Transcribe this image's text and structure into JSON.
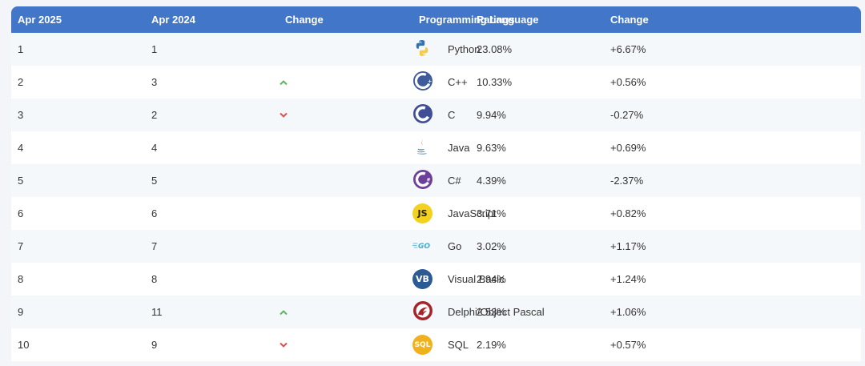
{
  "headers": [
    "Apr 2025",
    "Apr 2024",
    "Change",
    "Programming Language",
    "Ratings",
    "Change"
  ],
  "colors": {
    "header_bg": "#4176c8",
    "up": "#5cb85c",
    "down": "#d9534f"
  },
  "rows": [
    {
      "now": "1",
      "prev": "1",
      "trend": "none",
      "icon": "python-icon",
      "lang": "Python",
      "rating": "23.08%",
      "delta": "+6.67%"
    },
    {
      "now": "2",
      "prev": "3",
      "trend": "up",
      "icon": "cpp-icon",
      "lang": "C++",
      "rating": "10.33%",
      "delta": "+0.56%"
    },
    {
      "now": "3",
      "prev": "2",
      "trend": "down",
      "icon": "c-icon",
      "lang": "C",
      "rating": "9.94%",
      "delta": "-0.27%"
    },
    {
      "now": "4",
      "prev": "4",
      "trend": "none",
      "icon": "java-icon",
      "lang": "Java",
      "rating": "9.63%",
      "delta": "+0.69%"
    },
    {
      "now": "5",
      "prev": "5",
      "trend": "none",
      "icon": "csharp-icon",
      "lang": "C#",
      "rating": "4.39%",
      "delta": "-2.37%"
    },
    {
      "now": "6",
      "prev": "6",
      "trend": "none",
      "icon": "javascript-icon",
      "icon_text": "JS",
      "lang": "JavaScript",
      "rating": "3.71%",
      "delta": "+0.82%"
    },
    {
      "now": "7",
      "prev": "7",
      "trend": "none",
      "icon": "go-icon",
      "icon_text": "GO",
      "lang": "Go",
      "rating": "3.02%",
      "delta": "+1.17%"
    },
    {
      "now": "8",
      "prev": "8",
      "trend": "none",
      "icon": "visual-basic-icon",
      "icon_text": "VB",
      "lang": "Visual Basic",
      "rating": "2.94%",
      "delta": "+1.24%"
    },
    {
      "now": "9",
      "prev": "11",
      "trend": "up",
      "icon": "delphi-icon",
      "lang": "Delphi/Object Pascal",
      "rating": "2.53%",
      "delta": "+1.06%"
    },
    {
      "now": "10",
      "prev": "9",
      "trend": "down",
      "icon": "sql-icon",
      "icon_text": "SQL",
      "lang": "SQL",
      "rating": "2.19%",
      "delta": "+0.57%"
    }
  ]
}
